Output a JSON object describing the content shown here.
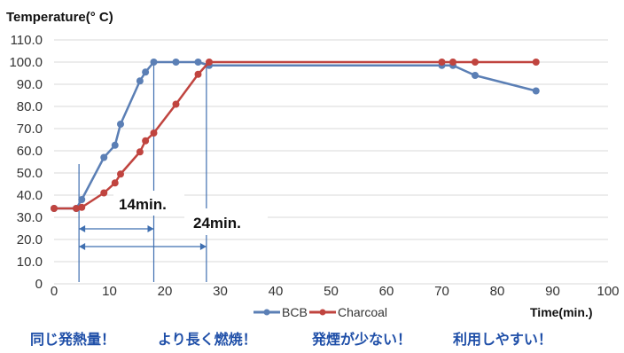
{
  "chart_data": {
    "type": "line",
    "ylabel": "Temperature(° C)",
    "xlabel": "Time(min.)",
    "xlim": [
      0,
      100
    ],
    "ylim": [
      0,
      110
    ],
    "xticks": [
      0,
      10,
      20,
      30,
      40,
      50,
      60,
      70,
      80,
      90,
      100
    ],
    "yticks": [
      "0",
      "10.0",
      "20.0",
      "30.0",
      "40.0",
      "50.0",
      "60.0",
      "70.0",
      "80.0",
      "90.0",
      "100.0",
      "110.0"
    ],
    "grid": true,
    "legend_position": "bottom",
    "series": [
      {
        "name": "BCB",
        "color": "#5b7fb5",
        "x": [
          0,
          4,
          5,
          9,
          11,
          12,
          15.5,
          16.5,
          18,
          22,
          26,
          28,
          70,
          72,
          76,
          87
        ],
        "y": [
          34,
          34,
          38,
          57,
          62.5,
          72,
          91.5,
          95.5,
          100,
          100,
          100,
          98.5,
          98.5,
          98.5,
          94,
          87
        ]
      },
      {
        "name": "Charcoal",
        "color": "#c0443f",
        "x": [
          0,
          4,
          5,
          9,
          11,
          12,
          15.5,
          16.5,
          18,
          22,
          26,
          28,
          70,
          72,
          76,
          87
        ],
        "y": [
          34,
          34,
          34.5,
          41,
          45.5,
          49.5,
          59.5,
          64.5,
          68,
          81,
          94.5,
          100,
          100,
          100,
          100,
          100
        ]
      }
    ],
    "annotations": {
      "guide_lines_x": [
        4.5,
        18,
        27.5
      ],
      "label_14": "14min.",
      "label_24": "24min."
    },
    "slogans": [
      "同じ発熱量！",
      "より長く燃焼！",
      "発煙が少ない！",
      "利用しやすい！"
    ]
  }
}
